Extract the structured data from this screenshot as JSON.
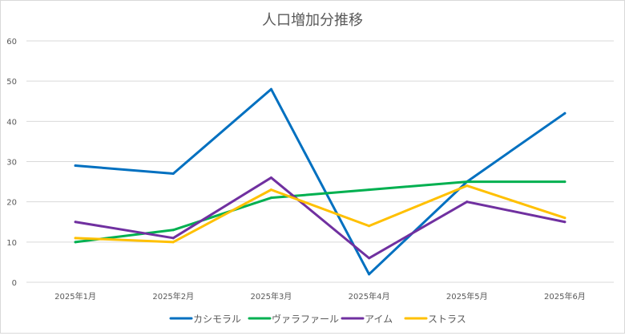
{
  "chart_data": {
    "type": "line",
    "title": "人口増加分推移",
    "xlabel": "",
    "ylabel": "",
    "categories": [
      "2025年1月",
      "2025年2月",
      "2025年3月",
      "2025年4月",
      "2025年5月",
      "2025年6月"
    ],
    "ylim": [
      0,
      60
    ],
    "yticks": [
      0,
      10,
      20,
      30,
      40,
      50,
      60
    ],
    "grid": true,
    "legend_position": "bottom",
    "series": [
      {
        "name": "カシモラル",
        "color": "#0070C0",
        "values": [
          29,
          27,
          48,
          2,
          25,
          42
        ]
      },
      {
        "name": "ヴァラファール",
        "color": "#00B050",
        "values": [
          10,
          13,
          21,
          23,
          25,
          25
        ]
      },
      {
        "name": "アイム",
        "color": "#7030A0",
        "values": [
          15,
          11,
          26,
          6,
          20,
          15
        ]
      },
      {
        "name": "ストラス",
        "color": "#FFC000",
        "values": [
          11,
          10,
          23,
          14,
          24,
          16
        ]
      }
    ]
  }
}
